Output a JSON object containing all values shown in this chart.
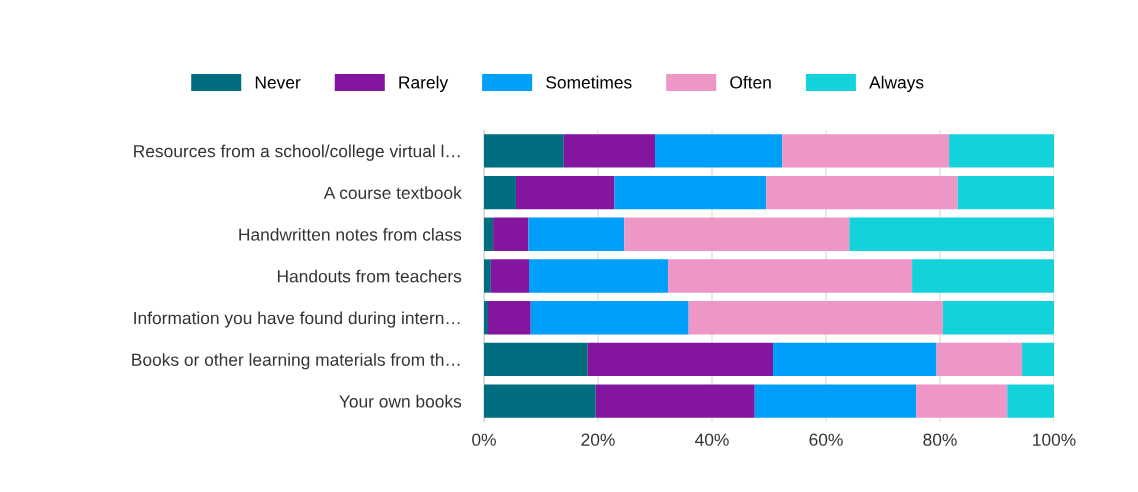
{
  "chart_data": {
    "type": "bar",
    "orientation": "horizontal",
    "stacked": true,
    "categories": [
      "Resources from a school/college virtual l…",
      "A course textbook",
      "Handwritten notes from class",
      "Handouts from teachers",
      "Information you have found during intern…",
      "Books or other learning materials from th…",
      "Your own books"
    ],
    "series": [
      {
        "name": "Never",
        "color": "#006e7f",
        "values": [
          14,
          5.6,
          1.6,
          1.2,
          0.7,
          18.2,
          19.6
        ]
      },
      {
        "name": "Rarely",
        "color": "#83159e",
        "values": [
          16,
          17.3,
          6.2,
          6.7,
          7.5,
          32.5,
          27.9
        ]
      },
      {
        "name": "Sometimes",
        "color": "#00a0fa",
        "values": [
          22.3,
          26.6,
          16.8,
          24.4,
          27.7,
          28.7,
          28.3
        ]
      },
      {
        "name": "Often",
        "color": "#ee96c6",
        "values": [
          29.3,
          33.6,
          39.5,
          42.8,
          44.6,
          15,
          16
        ]
      },
      {
        "name": "Always",
        "color": "#13d2dc",
        "values": [
          18.4,
          16.9,
          35.9,
          24.9,
          19.5,
          5.6,
          8.2
        ]
      }
    ],
    "xlim": [
      0,
      100
    ],
    "xticks": [
      {
        "value": 0,
        "label": "0%"
      },
      {
        "value": 20,
        "label": "20%"
      },
      {
        "value": 40,
        "label": "40%"
      },
      {
        "value": 60,
        "label": "60%"
      },
      {
        "value": 80,
        "label": "80%"
      },
      {
        "value": 100,
        "label": "100%"
      }
    ],
    "grid": "x",
    "legend": "top"
  }
}
